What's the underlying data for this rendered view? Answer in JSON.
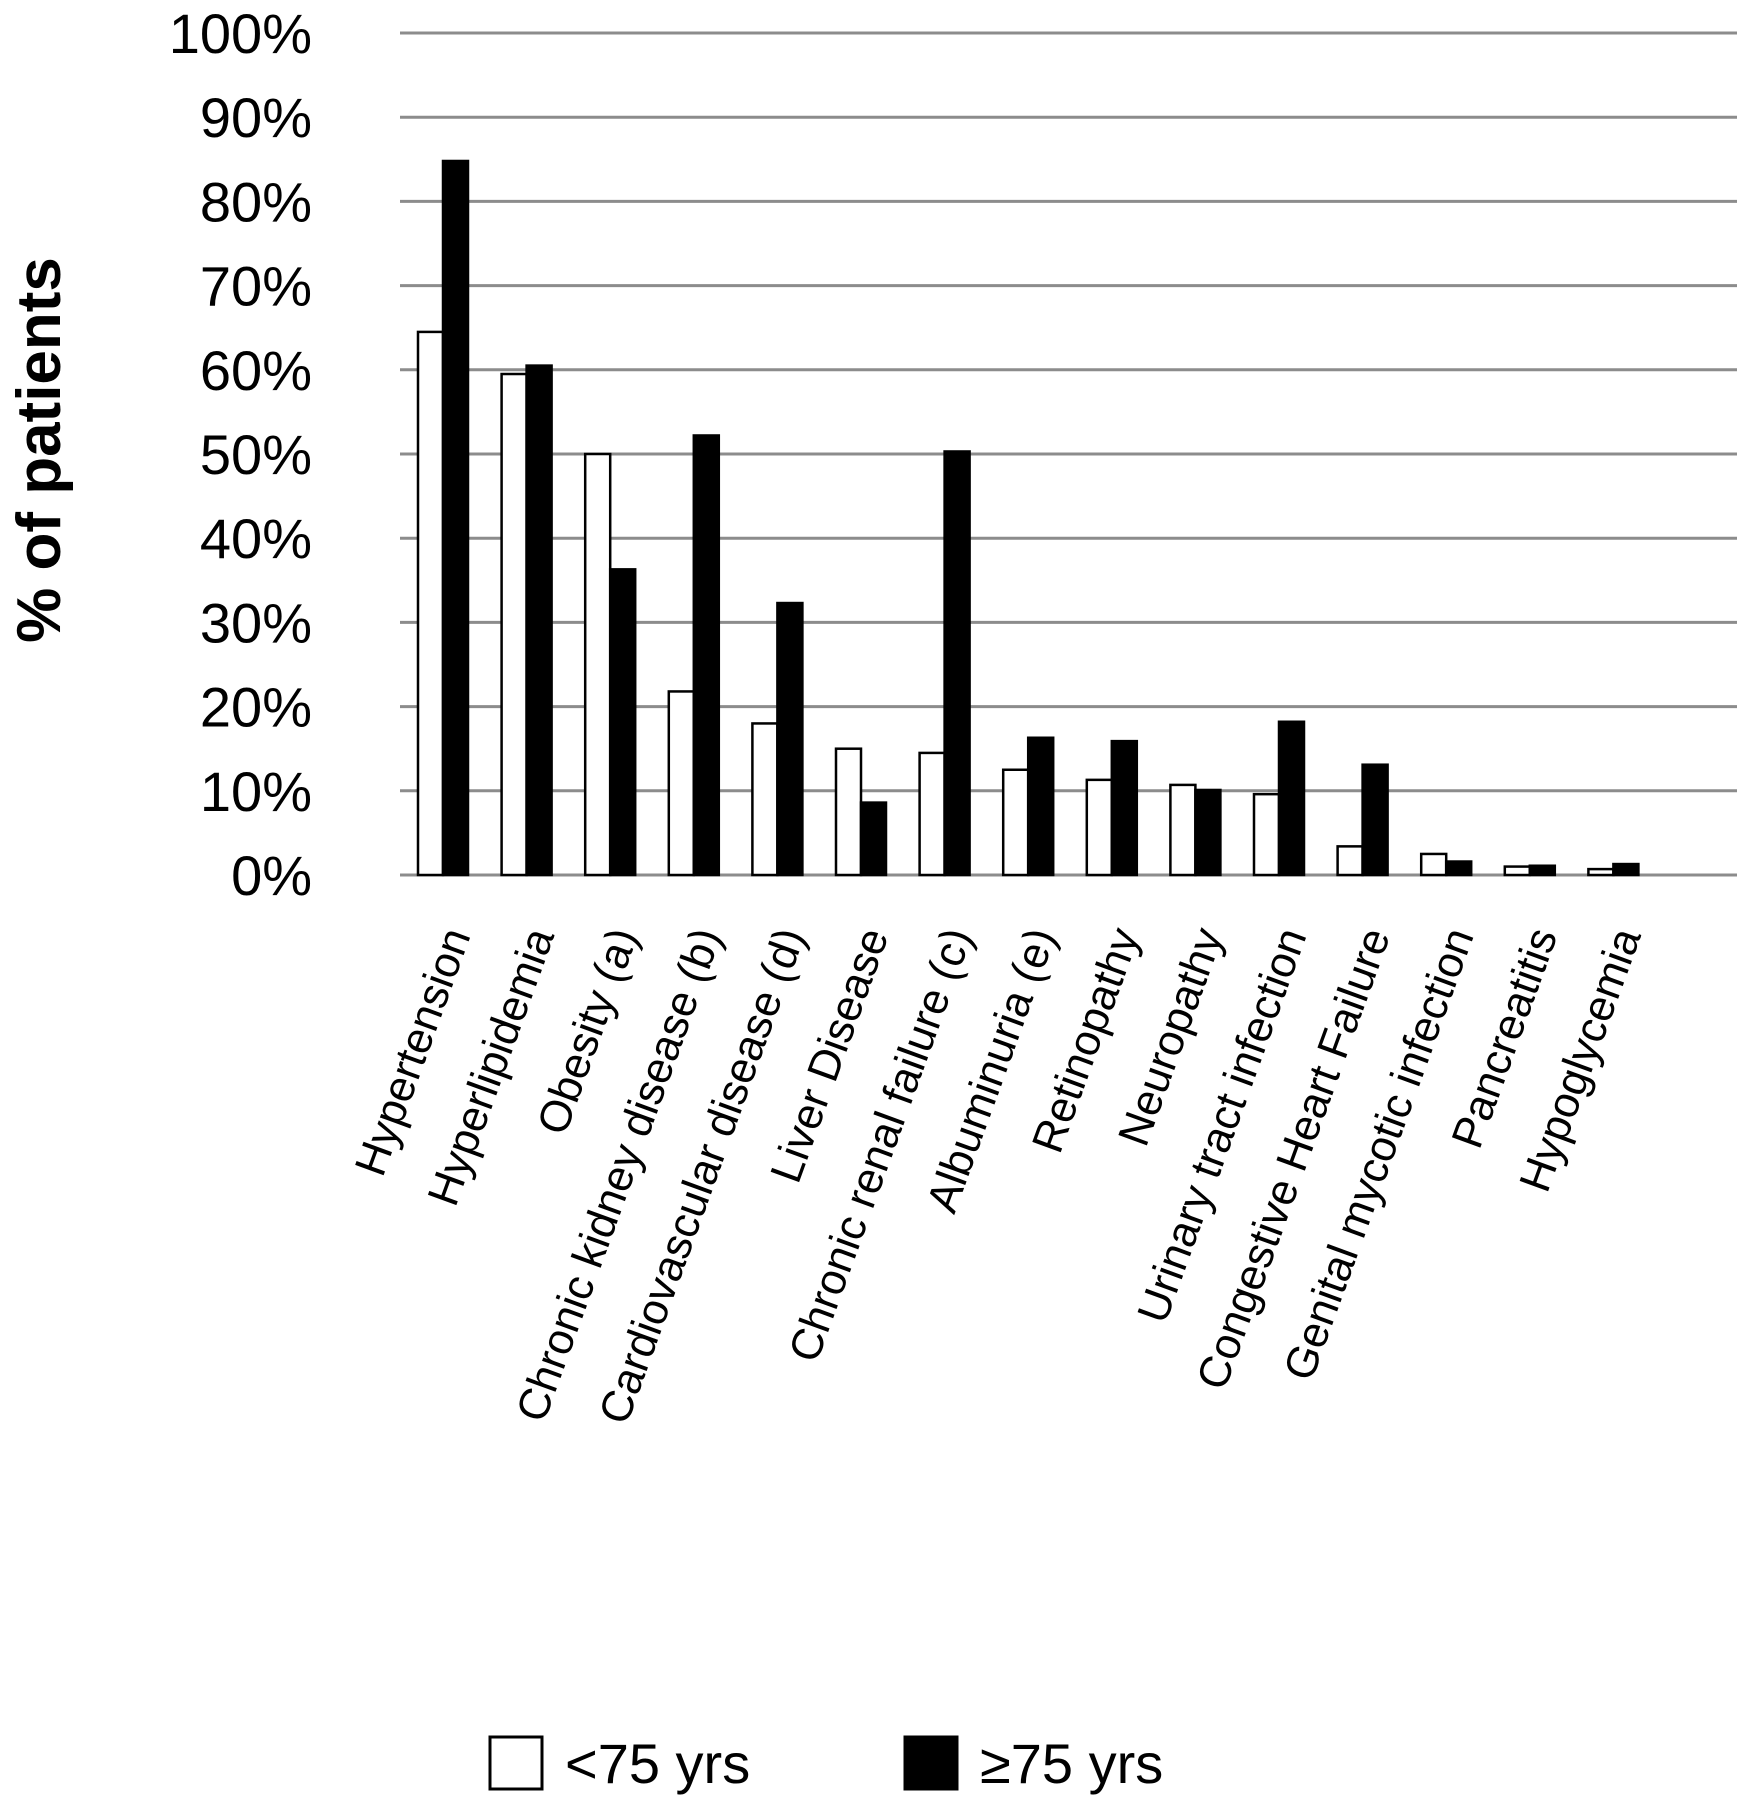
{
  "chart_data": {
    "type": "bar",
    "ylabel": "% of patients",
    "xlabel": "",
    "ylim": [
      0,
      100
    ],
    "yticks": [
      "0%",
      "10%",
      "20%",
      "30%",
      "40%",
      "50%",
      "60%",
      "70%",
      "80%",
      "90%",
      "100%"
    ],
    "grid": true,
    "legend_position": "bottom",
    "categories": [
      "Hypertension",
      "Hyperlipidemia",
      "Obesity (a)",
      "Chronic kidney disease (b)",
      "Cardiovascular disease (d)",
      "Liver Disease",
      "Chronic renal failure (c)",
      "Albuminuria (e)",
      "Retinopathy",
      "Neuropathy",
      "Urinary tract infection",
      "Congestive Heart Failure",
      "Genital mycotic infection",
      "Pancreatitis",
      "Hypoglycemia"
    ],
    "series": [
      {
        "name": "<75 yrs",
        "color": "#ffffff",
        "values": [
          64.5,
          59.5,
          50,
          21.8,
          18,
          15,
          14.5,
          12.5,
          11.3,
          10.7,
          9.6,
          3.4,
          2.5,
          1.0,
          0.7
        ]
      },
      {
        "name": "≥75 yrs",
        "color": "#000000",
        "values": [
          84.8,
          60.5,
          36.3,
          52.2,
          32.3,
          8.6,
          50.3,
          16.3,
          15.9,
          10.1,
          18.2,
          13.1,
          1.6,
          1.1,
          1.3
        ]
      }
    ]
  }
}
